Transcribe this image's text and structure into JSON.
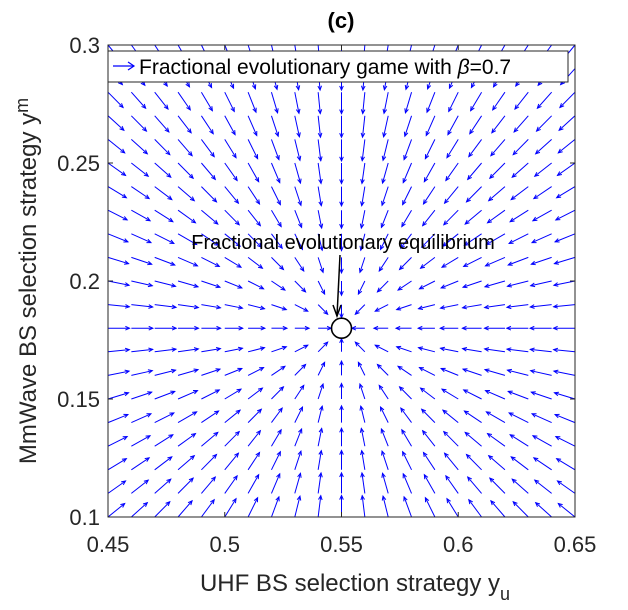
{
  "chart_data": {
    "type": "quiver",
    "title": "(c)",
    "xlabel": "UHF BS selection strategy y",
    "xlabel_sub": "u",
    "ylabel": "MmWave BS selection strategy y",
    "ylabel_sub": "m",
    "xlim": [
      0.45,
      0.65
    ],
    "ylim": [
      0.1,
      0.3
    ],
    "xticks": [
      0.45,
      0.5,
      0.55,
      0.6,
      0.65
    ],
    "xtick_labels": [
      "0.45",
      "0.5",
      "0.55",
      "0.6",
      "0.65"
    ],
    "yticks": [
      0.1,
      0.15,
      0.2,
      0.25,
      0.3
    ],
    "ytick_labels": [
      "0.1",
      "0.15",
      "0.2",
      "0.25",
      "0.3"
    ],
    "grid": false,
    "legend_position": "top",
    "series": [
      {
        "name": "Fractional evolutionary game with β=0.7",
        "name_prefix": "Fractional evolutionary game with ",
        "name_symbol": "β",
        "name_suffix": "=0.7",
        "color": "#0000ff",
        "x_grid_range": [
          0.45,
          0.65
        ],
        "y_grid_range": [
          0.1,
          0.3
        ],
        "grid_points_x": 21,
        "grid_points_y": 21,
        "field": "converges toward equilibrium"
      }
    ],
    "equilibrium": {
      "x": 0.55,
      "y": 0.18
    },
    "annotation": "Fractional evolutionary equilibrium"
  },
  "colors": {
    "arrow": "#0000ff",
    "axis": "#262626"
  }
}
